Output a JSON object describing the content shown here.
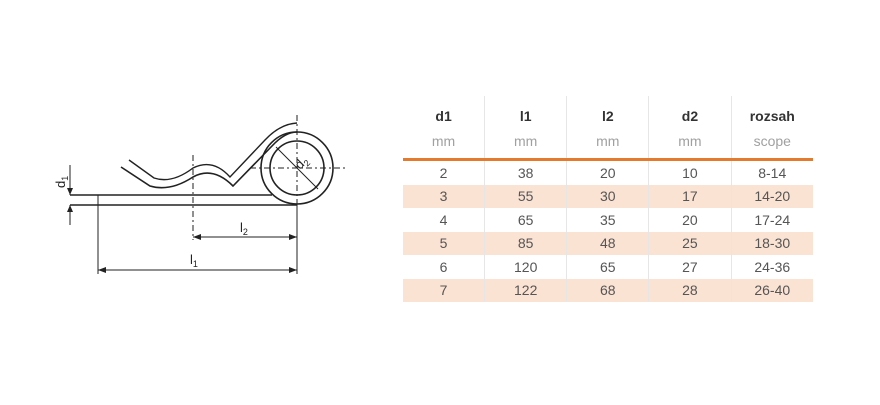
{
  "drawing": {
    "labels": {
      "d1": "d1",
      "d2": "d2",
      "l1": "l1",
      "l2": "l2"
    }
  },
  "table": {
    "headers": [
      "d1",
      "l1",
      "l2",
      "d2",
      "rozsah"
    ],
    "units": [
      "mm",
      "mm",
      "mm",
      "mm",
      "scope"
    ],
    "rows": [
      [
        "2",
        "38",
        "20",
        "10",
        "8-14"
      ],
      [
        "3",
        "55",
        "30",
        "17",
        "14-20"
      ],
      [
        "4",
        "65",
        "35",
        "20",
        "17-24"
      ],
      [
        "5",
        "85",
        "48",
        "25",
        "18-30"
      ],
      [
        "6",
        "120",
        "65",
        "27",
        "24-36"
      ],
      [
        "7",
        "122",
        "68",
        "28",
        "26-40"
      ]
    ],
    "accent": "#e47a2e",
    "stripe": "#fbe3d4"
  }
}
